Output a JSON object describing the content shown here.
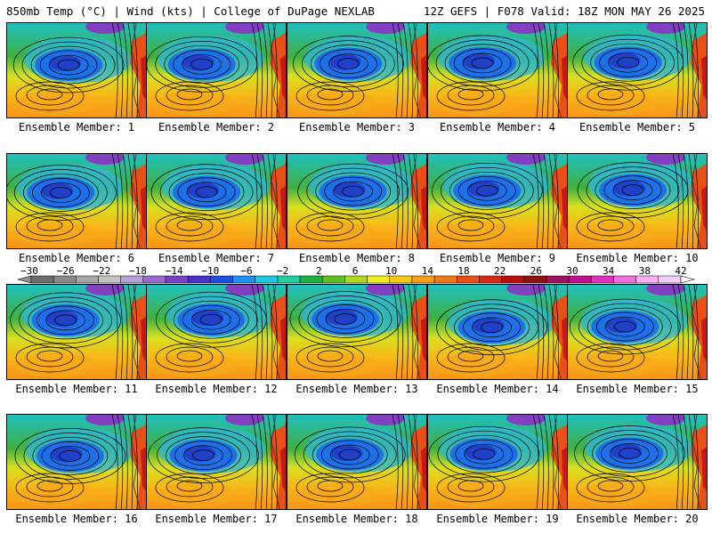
{
  "header": {
    "left": "850mb Temp (°C) | Wind (kts) | College of DuPage NEXLAB",
    "right": "12Z GEFS | F078 Valid: 18Z MON MAY 26 2025"
  },
  "panels": [
    {
      "caption": "Ensemble Member: 1"
    },
    {
      "caption": "Ensemble Member: 2"
    },
    {
      "caption": "Ensemble Member: 3"
    },
    {
      "caption": "Ensemble Member: 4"
    },
    {
      "caption": "Ensemble Member: 5"
    },
    {
      "caption": "Ensemble Member: 6"
    },
    {
      "caption": "Ensemble Member: 7"
    },
    {
      "caption": "Ensemble Member: 8"
    },
    {
      "caption": "Ensemble Member: 9"
    },
    {
      "caption": "Ensemble Member: 10"
    },
    {
      "caption": "Ensemble Member: 11"
    },
    {
      "caption": "Ensemble Member: 12"
    },
    {
      "caption": "Ensemble Member: 13"
    },
    {
      "caption": "Ensemble Member: 14"
    },
    {
      "caption": "Ensemble Member: 15"
    },
    {
      "caption": "Ensemble Member: 16"
    },
    {
      "caption": "Ensemble Member: 17"
    },
    {
      "caption": "Ensemble Member: 18"
    },
    {
      "caption": "Ensemble Member: 19"
    },
    {
      "caption": "Ensemble Member: 20"
    }
  ],
  "colorbar": {
    "labels": [
      "−30",
      "−26",
      "−22",
      "−18",
      "−14",
      "−10",
      "−6",
      "−2",
      "2",
      "6",
      "10",
      "14",
      "18",
      "22",
      "26",
      "30",
      "34",
      "38",
      "42"
    ],
    "colors": [
      "#6e6e6e",
      "#8a8a8a",
      "#a6a6a6",
      "#c4c4c4",
      "#b8a0d8",
      "#9a6ad0",
      "#7a40c8",
      "#4a30c8",
      "#1e50e0",
      "#1e90f0",
      "#20c8e0",
      "#20d0a0",
      "#20b040",
      "#60c020",
      "#b0d820",
      "#f0f020",
      "#f8c818",
      "#f8a018",
      "#f07818",
      "#e85018",
      "#d82818",
      "#b81010",
      "#901010",
      "#a01060",
      "#c01090",
      "#e030c0",
      "#f070e0",
      "#f8b0f0",
      "#f0d0f8"
    ],
    "low_color": "#909090",
    "high_color": "#ffffff"
  }
}
